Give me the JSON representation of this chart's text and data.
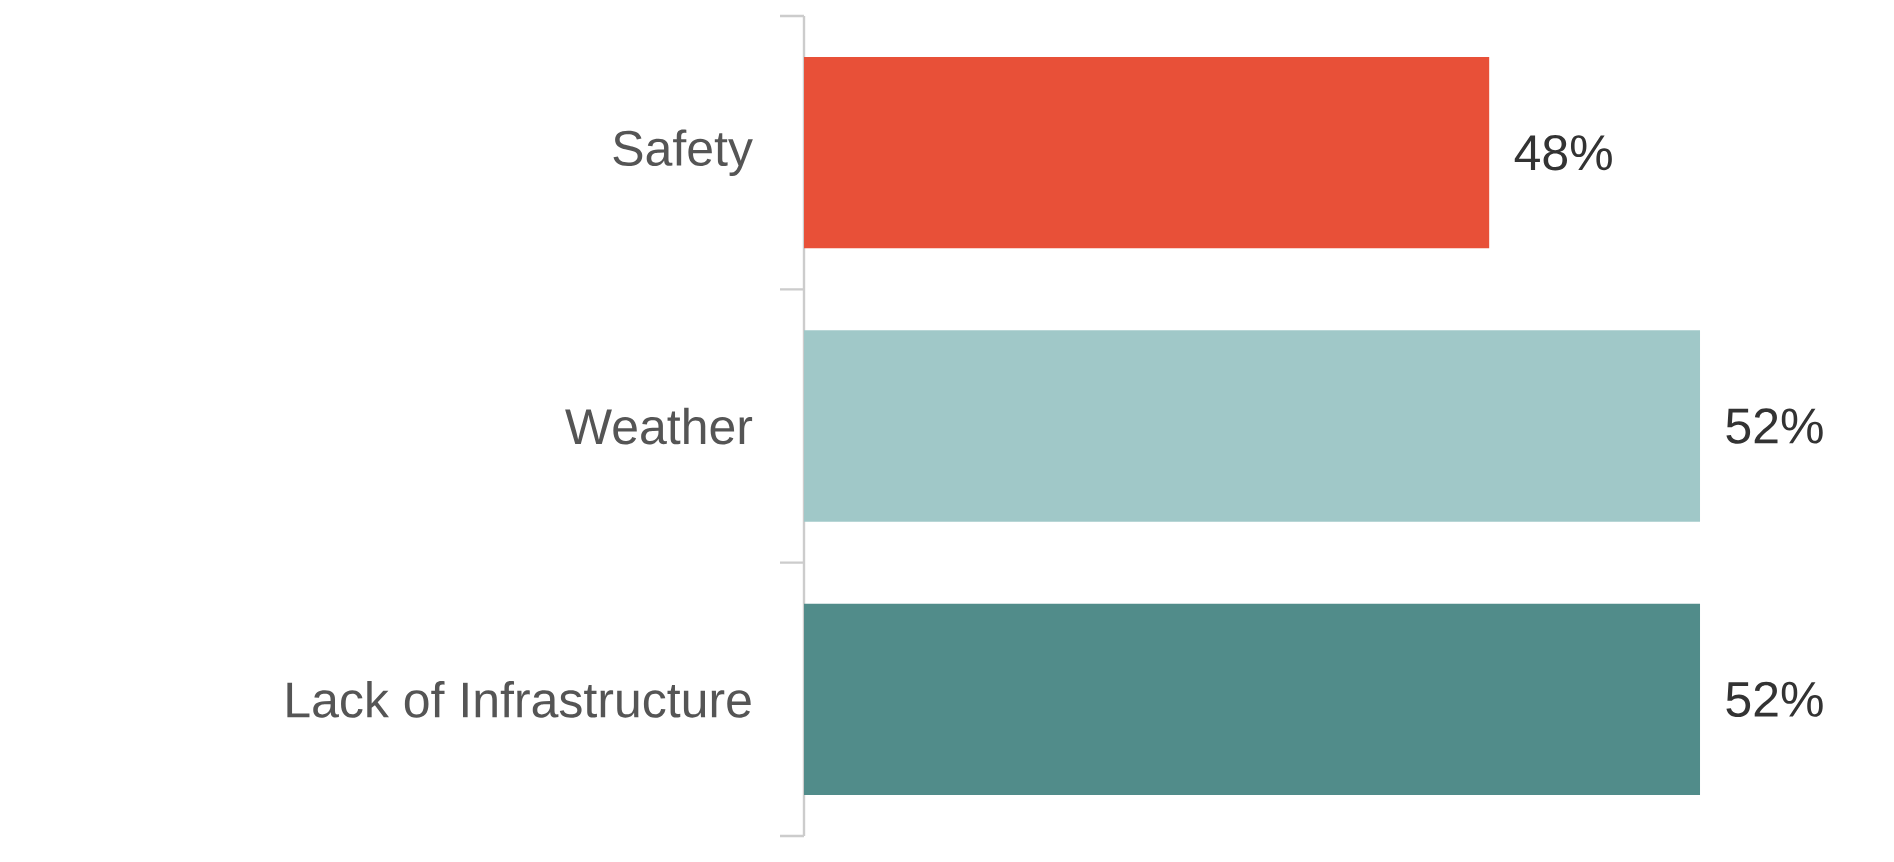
{
  "chart_data": {
    "type": "bar",
    "orientation": "horizontal",
    "categories": [
      "Safety",
      "Weather",
      "Lack of Infrastructure"
    ],
    "values": [
      48,
      52,
      52
    ],
    "colors": [
      "#e85038",
      "#a0c8c8",
      "#518c8a"
    ],
    "value_labels": [
      "48%",
      "52%",
      "52%"
    ],
    "xlim": [
      35,
      52
    ],
    "grid": false
  }
}
